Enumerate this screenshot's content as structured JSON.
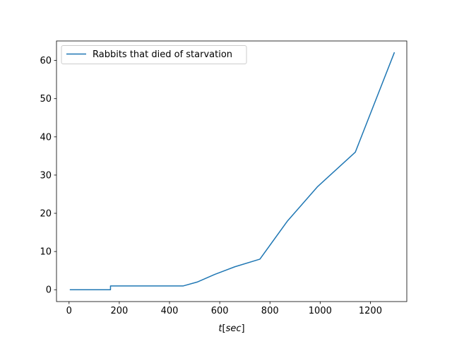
{
  "chart_data": {
    "type": "line",
    "title": "",
    "xlabel": "t[sec]",
    "ylabel": "",
    "xlim": [
      -50,
      1345
    ],
    "ylim": [
      -3.1,
      65.1
    ],
    "xticks": [
      0,
      200,
      400,
      600,
      800,
      1000,
      1200
    ],
    "yticks": [
      0,
      10,
      20,
      30,
      40,
      50,
      60
    ],
    "grid": false,
    "legend_position": "top-left",
    "series": [
      {
        "name": "Rabbits that died of starvation",
        "color": "#1f77b4",
        "x": [
          5,
          165,
          165,
          200,
          300,
          400,
          455,
          510,
          580,
          660,
          760,
          870,
          990,
          1140,
          1295
        ],
        "y": [
          0,
          0,
          1,
          1,
          1,
          1,
          1,
          2,
          4,
          6,
          8,
          18,
          27,
          36,
          62
        ]
      }
    ]
  }
}
